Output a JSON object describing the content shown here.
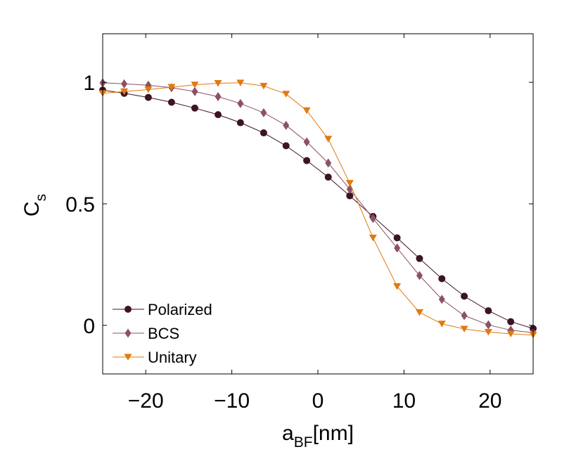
{
  "chart_data": {
    "type": "line",
    "title": "",
    "xlabel": {
      "main": "a",
      "sub": "BF",
      "unit": "[nm]"
    },
    "ylabel": {
      "main": "C",
      "sub": "s"
    },
    "xlim": [
      -25,
      25
    ],
    "ylim": [
      -0.2,
      1.2
    ],
    "xticks": [
      -20,
      -10,
      0,
      10,
      20
    ],
    "xtick_labels": [
      "−20",
      "−10",
      "0",
      "10",
      "20"
    ],
    "yticks": [
      0,
      0.5,
      1
    ],
    "ytick_labels": [
      "0",
      "0.5",
      "1"
    ],
    "grid": false,
    "legend_position": "bottom-left",
    "x": [
      -25,
      -22.5,
      -19.7,
      -17,
      -14.3,
      -11.6,
      -9,
      -6.3,
      -3.7,
      -1.3,
      1.2,
      3.7,
      6.4,
      9.2,
      11.8,
      14.4,
      17,
      19.8,
      22.4,
      25
    ],
    "series": [
      {
        "name": "Polarized",
        "color": "#3b1425",
        "marker": "circle",
        "values": [
          0.968,
          0.955,
          0.938,
          0.918,
          0.894,
          0.867,
          0.834,
          0.792,
          0.739,
          0.678,
          0.61,
          0.533,
          0.448,
          0.36,
          0.275,
          0.192,
          0.12,
          0.06,
          0.015,
          -0.013
        ]
      },
      {
        "name": "BCS",
        "color": "#8c5067",
        "marker": "diamond",
        "values": [
          0.998,
          0.994,
          0.988,
          0.978,
          0.962,
          0.941,
          0.913,
          0.875,
          0.823,
          0.755,
          0.668,
          0.56,
          0.44,
          0.318,
          0.205,
          0.107,
          0.04,
          0.002,
          -0.02,
          -0.03
        ]
      },
      {
        "name": "Unitary",
        "color": "#e07a10",
        "marker": "triangle-down",
        "values": [
          0.955,
          0.962,
          0.97,
          0.98,
          0.99,
          0.996,
          0.998,
          0.985,
          0.952,
          0.884,
          0.767,
          0.585,
          0.36,
          0.16,
          0.053,
          0.006,
          -0.015,
          -0.028,
          -0.035,
          -0.04
        ]
      }
    ]
  }
}
